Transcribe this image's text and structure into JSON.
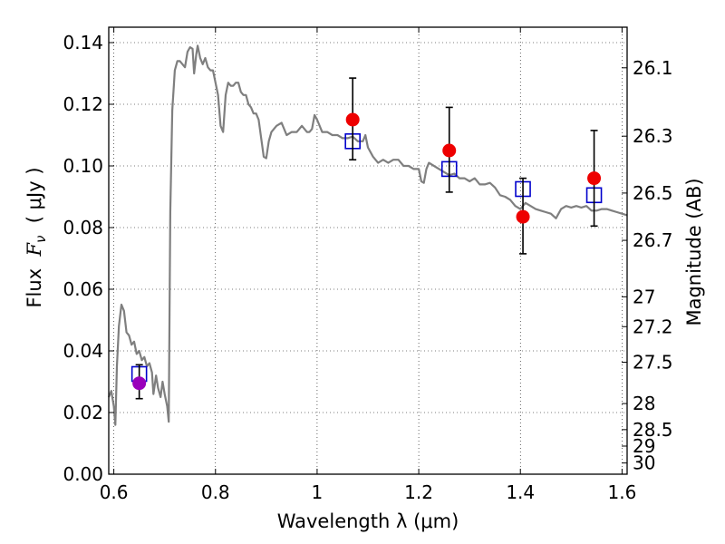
{
  "chart_data": {
    "type": "scatter",
    "xlabel": "Wavelength  λ (μm)",
    "ylabel": "Flux  F_ν  ( μJy )",
    "ylabel_parts": {
      "prefix": "Flux  ",
      "symbol": "F",
      "subscript": "ν",
      "suffix": "  ( μJy )"
    },
    "y2label": "Magnitude (AB)",
    "xlim": [
      0.59,
      1.61
    ],
    "ylim": [
      0.0,
      0.145
    ],
    "grid": true,
    "grid_style": "dotted",
    "x_ticks": [
      {
        "value": 0.6,
        "label": "0.6"
      },
      {
        "value": 0.8,
        "label": "0.8"
      },
      {
        "value": 1.0,
        "label": "1"
      },
      {
        "value": 1.2,
        "label": "1.2"
      },
      {
        "value": 1.4,
        "label": "1.4"
      },
      {
        "value": 1.6,
        "label": "1.6"
      }
    ],
    "y_ticks": [
      {
        "value": 0.0,
        "label": "0.00"
      },
      {
        "value": 0.02,
        "label": "0.02"
      },
      {
        "value": 0.04,
        "label": "0.04"
      },
      {
        "value": 0.06,
        "label": "0.06"
      },
      {
        "value": 0.08,
        "label": "0.08"
      },
      {
        "value": 0.1,
        "label": "0.10"
      },
      {
        "value": 0.12,
        "label": "0.12"
      },
      {
        "value": 0.14,
        "label": "0.14"
      }
    ],
    "y2_ticks": [
      {
        "mag": 26.1,
        "label": "26.1"
      },
      {
        "mag": 26.3,
        "label": "26.3"
      },
      {
        "mag": 26.5,
        "label": "26.5"
      },
      {
        "mag": 26.7,
        "label": "26.7"
      },
      {
        "mag": 27.0,
        "label": "27"
      },
      {
        "mag": 27.2,
        "label": "27.2"
      },
      {
        "mag": 27.5,
        "label": "27.5"
      },
      {
        "mag": 28.0,
        "label": "28"
      },
      {
        "mag": 28.5,
        "label": "28.5"
      },
      {
        "mag": 29.0,
        "label": "29"
      },
      {
        "mag": 30.0,
        "label": "30"
      }
    ],
    "series": [
      {
        "kind": "line",
        "color": "#7f7f7f",
        "points": [
          [
            0.59,
            0.025
          ],
          [
            0.595,
            0.027
          ],
          [
            0.6,
            0.022
          ],
          [
            0.603,
            0.016
          ],
          [
            0.606,
            0.035
          ],
          [
            0.61,
            0.048
          ],
          [
            0.615,
            0.055
          ],
          [
            0.62,
            0.053
          ],
          [
            0.625,
            0.046
          ],
          [
            0.63,
            0.045
          ],
          [
            0.635,
            0.042
          ],
          [
            0.64,
            0.043
          ],
          [
            0.645,
            0.039
          ],
          [
            0.65,
            0.04
          ],
          [
            0.655,
            0.037
          ],
          [
            0.66,
            0.038
          ],
          [
            0.665,
            0.035
          ],
          [
            0.67,
            0.036
          ],
          [
            0.675,
            0.033
          ],
          [
            0.678,
            0.026
          ],
          [
            0.683,
            0.032
          ],
          [
            0.687,
            0.028
          ],
          [
            0.692,
            0.025
          ],
          [
            0.696,
            0.03
          ],
          [
            0.7,
            0.026
          ],
          [
            0.705,
            0.022
          ],
          [
            0.708,
            0.017
          ],
          [
            0.711,
            0.085
          ],
          [
            0.715,
            0.118
          ],
          [
            0.72,
            0.131
          ],
          [
            0.725,
            0.134
          ],
          [
            0.73,
            0.134
          ],
          [
            0.735,
            0.133
          ],
          [
            0.74,
            0.132
          ],
          [
            0.745,
            0.137
          ],
          [
            0.75,
            0.1385
          ],
          [
            0.755,
            0.138
          ],
          [
            0.758,
            0.13
          ],
          [
            0.762,
            0.136
          ],
          [
            0.765,
            0.139
          ],
          [
            0.77,
            0.135
          ],
          [
            0.775,
            0.133
          ],
          [
            0.78,
            0.135
          ],
          [
            0.785,
            0.132
          ],
          [
            0.79,
            0.131
          ],
          [
            0.795,
            0.131
          ],
          [
            0.8,
            0.127
          ],
          [
            0.805,
            0.123
          ],
          [
            0.81,
            0.113
          ],
          [
            0.815,
            0.111
          ],
          [
            0.82,
            0.123
          ],
          [
            0.825,
            0.127
          ],
          [
            0.83,
            0.126
          ],
          [
            0.835,
            0.126
          ],
          [
            0.84,
            0.127
          ],
          [
            0.845,
            0.127
          ],
          [
            0.85,
            0.124
          ],
          [
            0.855,
            0.123
          ],
          [
            0.86,
            0.123
          ],
          [
            0.865,
            0.12
          ],
          [
            0.87,
            0.119
          ],
          [
            0.875,
            0.117
          ],
          [
            0.88,
            0.117
          ],
          [
            0.885,
            0.115
          ],
          [
            0.89,
            0.109
          ],
          [
            0.895,
            0.103
          ],
          [
            0.9,
            0.1025
          ],
          [
            0.905,
            0.108
          ],
          [
            0.91,
            0.111
          ],
          [
            0.915,
            0.112
          ],
          [
            0.92,
            0.113
          ],
          [
            0.93,
            0.114
          ],
          [
            0.94,
            0.11
          ],
          [
            0.95,
            0.111
          ],
          [
            0.96,
            0.111
          ],
          [
            0.965,
            0.112
          ],
          [
            0.97,
            0.113
          ],
          [
            0.98,
            0.111
          ],
          [
            0.985,
            0.111
          ],
          [
            0.99,
            0.112
          ],
          [
            0.995,
            0.1165
          ],
          [
            1.0,
            0.115
          ],
          [
            1.01,
            0.111
          ],
          [
            1.02,
            0.111
          ],
          [
            1.03,
            0.11
          ],
          [
            1.04,
            0.11
          ],
          [
            1.05,
            0.109
          ],
          [
            1.06,
            0.109
          ],
          [
            1.07,
            0.1095
          ],
          [
            1.08,
            0.108
          ],
          [
            1.09,
            0.108
          ],
          [
            1.095,
            0.11
          ],
          [
            1.1,
            0.106
          ],
          [
            1.11,
            0.103
          ],
          [
            1.12,
            0.101
          ],
          [
            1.13,
            0.102
          ],
          [
            1.14,
            0.101
          ],
          [
            1.15,
            0.102
          ],
          [
            1.16,
            0.102
          ],
          [
            1.17,
            0.1
          ],
          [
            1.18,
            0.1
          ],
          [
            1.19,
            0.099
          ],
          [
            1.2,
            0.099
          ],
          [
            1.205,
            0.095
          ],
          [
            1.21,
            0.0945
          ],
          [
            1.215,
            0.099
          ],
          [
            1.22,
            0.101
          ],
          [
            1.23,
            0.1
          ],
          [
            1.24,
            0.099
          ],
          [
            1.25,
            0.098
          ],
          [
            1.26,
            0.097
          ],
          [
            1.27,
            0.0975
          ],
          [
            1.28,
            0.096
          ],
          [
            1.29,
            0.096
          ],
          [
            1.3,
            0.095
          ],
          [
            1.31,
            0.096
          ],
          [
            1.32,
            0.094
          ],
          [
            1.33,
            0.094
          ],
          [
            1.34,
            0.0945
          ],
          [
            1.35,
            0.093
          ],
          [
            1.36,
            0.0905
          ],
          [
            1.37,
            0.09
          ],
          [
            1.38,
            0.089
          ],
          [
            1.39,
            0.087
          ],
          [
            1.4,
            0.086
          ],
          [
            1.41,
            0.088
          ],
          [
            1.42,
            0.087
          ],
          [
            1.43,
            0.086
          ],
          [
            1.44,
            0.0855
          ],
          [
            1.45,
            0.085
          ],
          [
            1.46,
            0.0845
          ],
          [
            1.47,
            0.083
          ],
          [
            1.475,
            0.0845
          ],
          [
            1.48,
            0.086
          ],
          [
            1.49,
            0.087
          ],
          [
            1.5,
            0.0865
          ],
          [
            1.51,
            0.087
          ],
          [
            1.52,
            0.0865
          ],
          [
            1.53,
            0.087
          ],
          [
            1.54,
            0.0855
          ],
          [
            1.55,
            0.0855
          ],
          [
            1.56,
            0.086
          ],
          [
            1.57,
            0.086
          ],
          [
            1.58,
            0.0855
          ],
          [
            1.59,
            0.085
          ],
          [
            1.6,
            0.0845
          ],
          [
            1.61,
            0.084
          ]
        ]
      },
      {
        "kind": "markers",
        "marker": "square-open",
        "color": "#0000cc",
        "points": [
          [
            0.65,
            0.0325
          ],
          [
            1.07,
            0.108
          ],
          [
            1.26,
            0.099
          ],
          [
            1.405,
            0.0925
          ],
          [
            1.545,
            0.0905
          ]
        ]
      },
      {
        "kind": "errorbars",
        "color": "#000000",
        "points": [
          {
            "x": 0.65,
            "y": 0.0295,
            "lo": 0.0245,
            "hi": 0.0355
          },
          {
            "x": 1.07,
            "y": 0.115,
            "lo": 0.102,
            "hi": 0.1285
          },
          {
            "x": 1.26,
            "y": 0.105,
            "lo": 0.0915,
            "hi": 0.119
          },
          {
            "x": 1.405,
            "y": 0.0835,
            "lo": 0.0715,
            "hi": 0.096
          },
          {
            "x": 1.545,
            "y": 0.096,
            "lo": 0.0805,
            "hi": 0.1115
          }
        ]
      },
      {
        "kind": "markers",
        "marker": "circle-filled",
        "points": [
          {
            "x": 0.65,
            "y": 0.0295,
            "color": "#9900bb"
          },
          {
            "x": 1.07,
            "y": 0.115,
            "color": "#ee0000"
          },
          {
            "x": 1.26,
            "y": 0.105,
            "color": "#ee0000"
          },
          {
            "x": 1.405,
            "y": 0.0835,
            "color": "#ee0000"
          },
          {
            "x": 1.545,
            "y": 0.096,
            "color": "#ee0000"
          }
        ]
      }
    ]
  }
}
